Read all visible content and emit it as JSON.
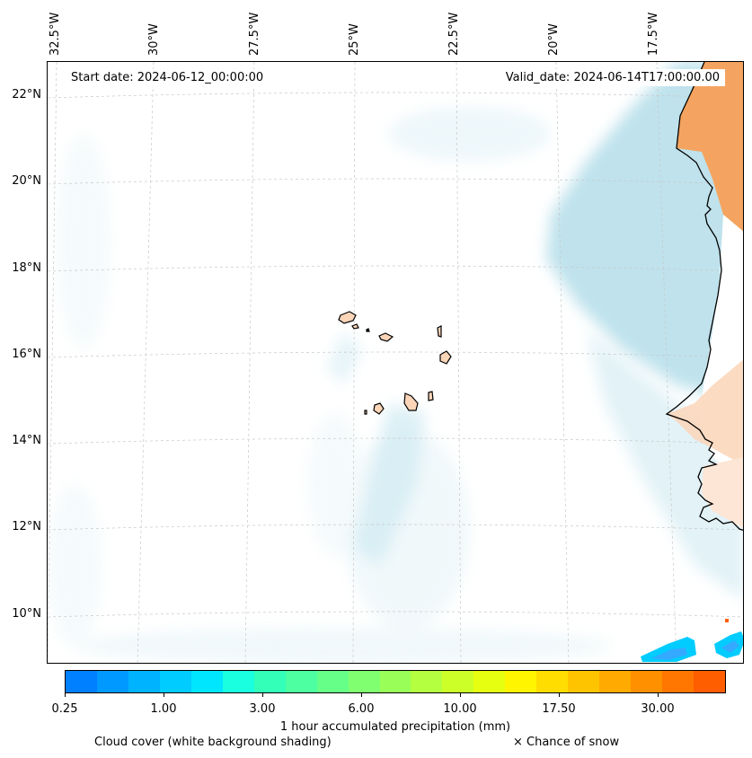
{
  "map": {
    "start_date": "Start date: 2024-06-12_00:00:00",
    "valid_date": "Valid_date: 2024-06-14T17:00:00.00",
    "longitude_labels": [
      "32.5°W",
      "30°W",
      "27.5°W",
      "25°W",
      "22.5°W",
      "20°W",
      "17.5°W"
    ],
    "latitude_labels": [
      "22°N",
      "20°N",
      "18°N",
      "16°N",
      "14°N",
      "12°N",
      "10°N"
    ],
    "region": "Cape Verde islands and West African coast (Senegal, Mauritania)"
  },
  "colorbar": {
    "title": "1 hour accumulated precipitation (mm)",
    "tick_labels": [
      "0.25",
      "1.00",
      "3.00",
      "6.00",
      "10.00",
      "17.50",
      "30.00"
    ],
    "colors": [
      "#0080ff",
      "#0099ff",
      "#00b3ff",
      "#00ccff",
      "#00e6ff",
      "#19ffe0",
      "#33ffb8",
      "#4dffa0",
      "#66ff88",
      "#80ff70",
      "#99ff58",
      "#b3ff40",
      "#ccff28",
      "#e6ff10",
      "#fff500",
      "#ffdd00",
      "#ffc400",
      "#ffaa00",
      "#ff9000",
      "#ff7700",
      "#ff5e00"
    ]
  },
  "legend": {
    "cloud_cover": "Cloud cover (white background shading)",
    "snow": "× Chance of snow"
  },
  "colors": {
    "land": "#f4a460",
    "land_light": "#fbd5b8",
    "cloud": "#a9d8e6",
    "precip_strong": "#00ccff",
    "precip_weak": "#33aaff"
  }
}
